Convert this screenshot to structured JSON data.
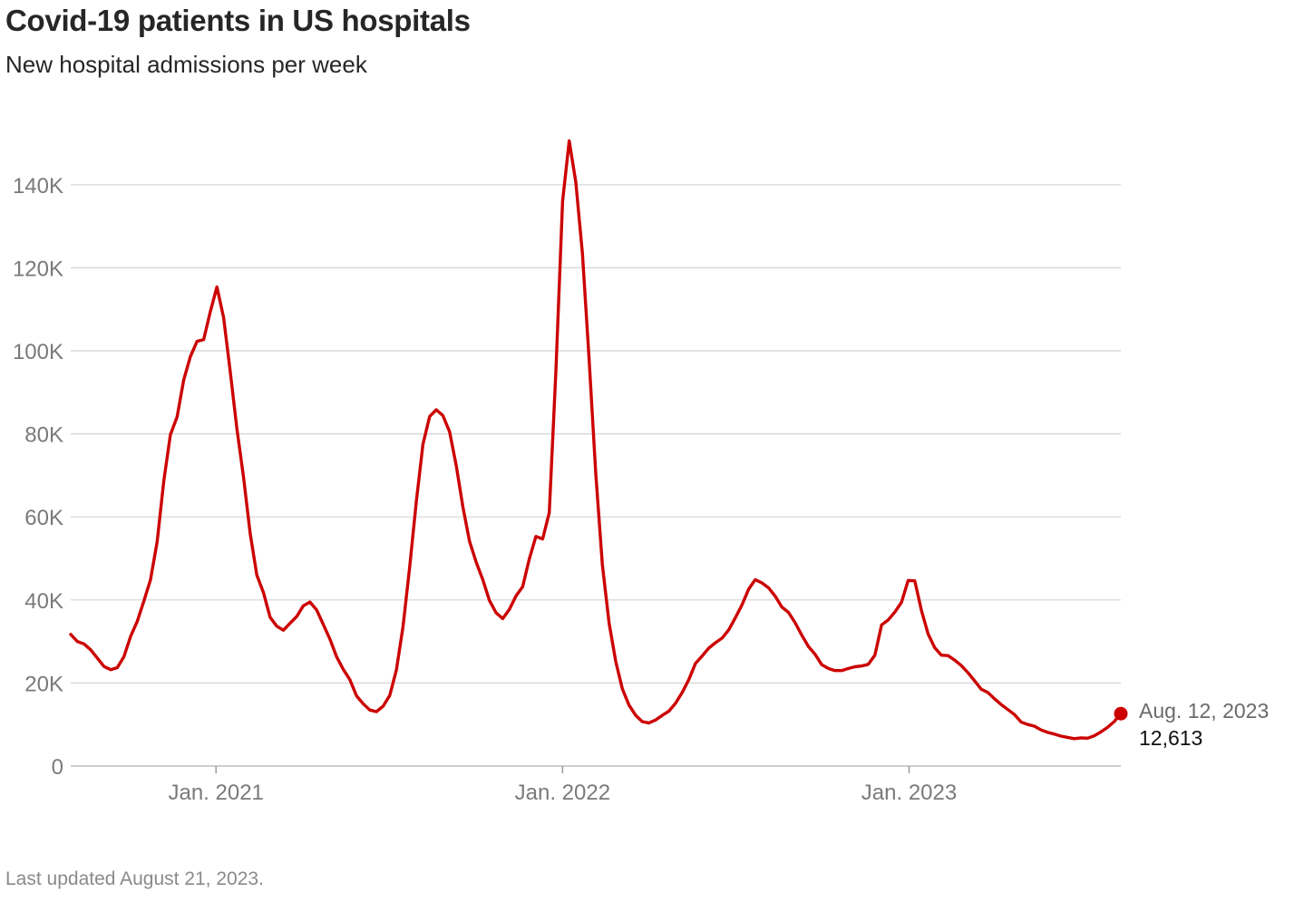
{
  "title": "Covid-19 patients in US hospitals",
  "subtitle": "New hospital admissions per week",
  "footnote": "Last updated August 21, 2023.",
  "colors": {
    "line": "#cc0000",
    "grid": "#d4d4d4",
    "axis_text": "#7a7a7a",
    "title": "#262626"
  },
  "chart_data": {
    "type": "line",
    "title": "Covid-19 patients in US hospitals",
    "subtitle": "New hospital admissions per week",
    "xlabel": "",
    "ylabel": "",
    "ylim": [
      0,
      150000
    ],
    "xlim": [
      "2020-08-01",
      "2023-08-12"
    ],
    "grid": true,
    "y_ticks": [
      {
        "value": 0,
        "label": "0"
      },
      {
        "value": 20000,
        "label": "20K"
      },
      {
        "value": 40000,
        "label": "40K"
      },
      {
        "value": 60000,
        "label": "60K"
      },
      {
        "value": 80000,
        "label": "80K"
      },
      {
        "value": 100000,
        "label": "100K"
      },
      {
        "value": 120000,
        "label": "120K"
      },
      {
        "value": 140000,
        "label": "140K"
      }
    ],
    "x_ticks": [
      {
        "value": "2021-01-01",
        "label": "Jan. 2021"
      },
      {
        "value": "2022-01-01",
        "label": "Jan. 2022"
      },
      {
        "value": "2023-01-01",
        "label": "Jan. 2023"
      }
    ],
    "series": [
      {
        "color": "#cc0000",
        "points": [
          [
            "2020-08-01",
            31700
          ],
          [
            "2020-08-08",
            30000
          ],
          [
            "2020-08-15",
            29400
          ],
          [
            "2020-08-22",
            28000
          ],
          [
            "2020-08-29",
            26000
          ],
          [
            "2020-09-05",
            24000
          ],
          [
            "2020-09-12",
            23200
          ],
          [
            "2020-09-19",
            23700
          ],
          [
            "2020-09-26",
            26300
          ],
          [
            "2020-10-03",
            31200
          ],
          [
            "2020-10-10",
            34800
          ],
          [
            "2020-10-17",
            39700
          ],
          [
            "2020-10-24",
            44800
          ],
          [
            "2020-10-31",
            54000
          ],
          [
            "2020-11-07",
            68600
          ],
          [
            "2020-11-14",
            79800
          ],
          [
            "2020-11-21",
            84100
          ],
          [
            "2020-11-28",
            93000
          ],
          [
            "2020-12-05",
            98600
          ],
          [
            "2020-12-12",
            102300
          ],
          [
            "2020-12-19",
            102700
          ],
          [
            "2020-12-26",
            109400
          ],
          [
            "2021-01-02",
            115400
          ],
          [
            "2021-01-09",
            108000
          ],
          [
            "2021-01-16",
            95000
          ],
          [
            "2021-01-23",
            81300
          ],
          [
            "2021-01-30",
            69500
          ],
          [
            "2021-02-06",
            56000
          ],
          [
            "2021-02-13",
            46000
          ],
          [
            "2021-02-20",
            41800
          ],
          [
            "2021-02-27",
            35800
          ],
          [
            "2021-03-06",
            33700
          ],
          [
            "2021-03-13",
            32700
          ],
          [
            "2021-03-20",
            34400
          ],
          [
            "2021-03-27",
            36000
          ],
          [
            "2021-04-03",
            38600
          ],
          [
            "2021-04-10",
            39500
          ],
          [
            "2021-04-17",
            37600
          ],
          [
            "2021-04-24",
            34100
          ],
          [
            "2021-05-01",
            30600
          ],
          [
            "2021-05-08",
            26300
          ],
          [
            "2021-05-15",
            23300
          ],
          [
            "2021-05-22",
            20800
          ],
          [
            "2021-05-29",
            16900
          ],
          [
            "2021-06-05",
            15000
          ],
          [
            "2021-06-12",
            13500
          ],
          [
            "2021-06-19",
            13100
          ],
          [
            "2021-06-26",
            14400
          ],
          [
            "2021-07-03",
            17000
          ],
          [
            "2021-07-10",
            23100
          ],
          [
            "2021-07-17",
            33700
          ],
          [
            "2021-07-24",
            48000
          ],
          [
            "2021-07-31",
            63700
          ],
          [
            "2021-08-07",
            77500
          ],
          [
            "2021-08-14",
            84200
          ],
          [
            "2021-08-21",
            85800
          ],
          [
            "2021-08-28",
            84400
          ],
          [
            "2021-09-04",
            80500
          ],
          [
            "2021-09-11",
            72400
          ],
          [
            "2021-09-18",
            62500
          ],
          [
            "2021-09-25",
            54200
          ],
          [
            "2021-10-02",
            49100
          ],
          [
            "2021-10-09",
            44900
          ],
          [
            "2021-10-16",
            39900
          ],
          [
            "2021-10-23",
            36900
          ],
          [
            "2021-10-30",
            35500
          ],
          [
            "2021-11-06",
            37700
          ],
          [
            "2021-11-13",
            41000
          ],
          [
            "2021-11-20",
            43200
          ],
          [
            "2021-11-27",
            49900
          ],
          [
            "2021-12-04",
            55300
          ],
          [
            "2021-12-11",
            54700
          ],
          [
            "2021-12-18",
            61000
          ],
          [
            "2021-12-25",
            95000
          ],
          [
            "2022-01-01",
            136000
          ],
          [
            "2022-01-08",
            150600
          ],
          [
            "2022-01-15",
            140600
          ],
          [
            "2022-01-22",
            123400
          ],
          [
            "2022-01-29",
            97800
          ],
          [
            "2022-02-05",
            70400
          ],
          [
            "2022-02-12",
            48400
          ],
          [
            "2022-02-19",
            34400
          ],
          [
            "2022-02-26",
            25200
          ],
          [
            "2022-03-05",
            18600
          ],
          [
            "2022-03-12",
            14700
          ],
          [
            "2022-03-19",
            12200
          ],
          [
            "2022-03-26",
            10700
          ],
          [
            "2022-04-02",
            10400
          ],
          [
            "2022-04-09",
            11100
          ],
          [
            "2022-04-16",
            12200
          ],
          [
            "2022-04-23",
            13200
          ],
          [
            "2022-04-30",
            15100
          ],
          [
            "2022-05-07",
            17700
          ],
          [
            "2022-05-14",
            20800
          ],
          [
            "2022-05-21",
            24700
          ],
          [
            "2022-05-28",
            26500
          ],
          [
            "2022-06-04",
            28400
          ],
          [
            "2022-06-11",
            29700
          ],
          [
            "2022-06-18",
            30800
          ],
          [
            "2022-06-25",
            32800
          ],
          [
            "2022-07-02",
            35700
          ],
          [
            "2022-07-09",
            38800
          ],
          [
            "2022-07-16",
            42600
          ],
          [
            "2022-07-23",
            44900
          ],
          [
            "2022-07-30",
            44100
          ],
          [
            "2022-08-06",
            42900
          ],
          [
            "2022-08-13",
            40900
          ],
          [
            "2022-08-20",
            38300
          ],
          [
            "2022-08-27",
            37000
          ],
          [
            "2022-09-03",
            34500
          ],
          [
            "2022-09-10",
            31500
          ],
          [
            "2022-09-17",
            28800
          ],
          [
            "2022-09-24",
            26900
          ],
          [
            "2022-10-01",
            24400
          ],
          [
            "2022-10-08",
            23500
          ],
          [
            "2022-10-15",
            23000
          ],
          [
            "2022-10-22",
            23000
          ],
          [
            "2022-10-29",
            23500
          ],
          [
            "2022-11-05",
            23900
          ],
          [
            "2022-11-12",
            24100
          ],
          [
            "2022-11-19",
            24500
          ],
          [
            "2022-11-26",
            26700
          ],
          [
            "2022-12-03",
            34000
          ],
          [
            "2022-12-10",
            35200
          ],
          [
            "2022-12-17",
            37100
          ],
          [
            "2022-12-24",
            39400
          ],
          [
            "2022-12-31",
            44700
          ],
          [
            "2023-01-07",
            44600
          ],
          [
            "2023-01-14",
            37500
          ],
          [
            "2023-01-21",
            31800
          ],
          [
            "2023-01-28",
            28500
          ],
          [
            "2023-02-04",
            26700
          ],
          [
            "2023-02-11",
            26600
          ],
          [
            "2023-02-18",
            25500
          ],
          [
            "2023-02-25",
            24200
          ],
          [
            "2023-03-04",
            22500
          ],
          [
            "2023-03-11",
            20500
          ],
          [
            "2023-03-18",
            18500
          ],
          [
            "2023-03-25",
            17700
          ],
          [
            "2023-04-01",
            16200
          ],
          [
            "2023-04-08",
            14800
          ],
          [
            "2023-04-15",
            13600
          ],
          [
            "2023-04-22",
            12400
          ],
          [
            "2023-04-29",
            10600
          ],
          [
            "2023-05-06",
            10000
          ],
          [
            "2023-05-13",
            9600
          ],
          [
            "2023-05-20",
            8700
          ],
          [
            "2023-05-27",
            8100
          ],
          [
            "2023-06-03",
            7700
          ],
          [
            "2023-06-10",
            7200
          ],
          [
            "2023-06-17",
            6900
          ],
          [
            "2023-06-24",
            6600
          ],
          [
            "2023-07-01",
            6800
          ],
          [
            "2023-07-08",
            6700
          ],
          [
            "2023-07-15",
            7300
          ],
          [
            "2023-07-22",
            8200
          ],
          [
            "2023-07-29",
            9300
          ],
          [
            "2023-08-05",
            10700
          ],
          [
            "2023-08-12",
            12613
          ]
        ]
      }
    ],
    "annotation": {
      "date": "2023-08-12",
      "date_label": "Aug. 12, 2023",
      "value_label": "12,613"
    }
  }
}
